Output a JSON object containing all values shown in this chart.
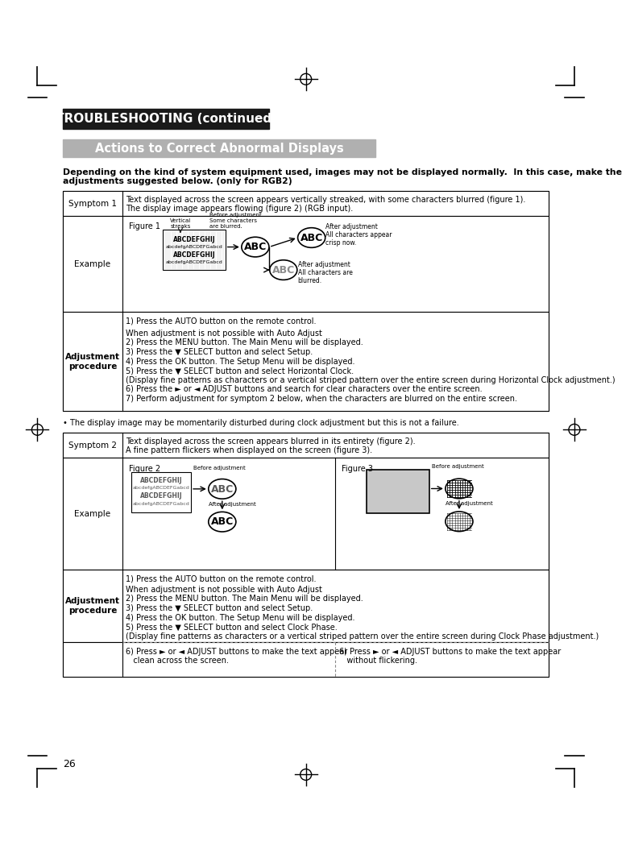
{
  "page_bg": "#ffffff",
  "title_bg": "#1a1a1a",
  "title_text": "TROUBLESHOOTING (continued)",
  "title_text_color": "#ffffff",
  "subtitle_bg": "#b0b0b0",
  "subtitle_text": "Actions to Correct Abnormal Displays",
  "subtitle_text_color": "#ffffff",
  "intro_bold": "Depending on the kind of system equipment used, images may not be displayed normally.  In this case, make the\nadjustments suggested below. (only for RGB2)",
  "symptom1_label": "Symptom 1",
  "symptom1_text": "Text displayed across the screen appears vertically streaked, with some characters blurred (figure 1).\nThe display image appears flowing (figure 2) (RGB input).",
  "example_label": "Example",
  "figure1_label": "Figure 1",
  "adjustment_label": "Adjustment\nprocedure",
  "adj1_step1": "1) Press the AUTO button on the remote control.",
  "adj1_steps": "When adjustment is not possible with Auto Adjust\n2) Press the MENU button. The Main Menu will be displayed.\n3) Press the ▼ SELECT button and select Setup.\n4) Press the OK button. The Setup Menu will be displayed.\n5) Press the ▼ SELECT button and select Horizontal Clock.\n(Display fine patterns as characters or a vertical striped pattern over the entire screen during Horizontal Clock adjustment.)\n6) Press the ► or ◄ ADJUST buttons and search for clear characters over the entire screen.\n7) Perform adjustment for symptom 2 below, when the characters are blurred on the entire screen.",
  "bullet_note1": "• The display image may be momentarily disturbed during clock adjustment but this is not a failure.",
  "symptom2_label": "Symptom 2",
  "symptom2_text": "Text displayed across the screen appears blurred in its entirety (figure 2).\nA fine pattern flickers when displayed on the screen (figure 3).",
  "figure2_label": "Figure 2",
  "figure3_label": "Figure 3",
  "adj2_step1": "1) Press the AUTO button on the remote control.",
  "adj2_steps": "When adjustment is not possible with Auto Adjust\n2) Press the MENU button. The Main Menu will be displayed.\n3) Press the ▼ SELECT button and select Setup.\n4) Press the OK button. The Setup Menu will be displayed.\n5) Press the ▼ SELECT button and select Clock Phase.\n(Display fine patterns as characters or a vertical striped pattern over the entire screen during Clock Phase adjustment.)",
  "adj2_col1": "6) Press ► or ◄ ADJUST buttons to make the text appear\n   clean across the screen.",
  "adj2_col2": "6) Press ► or ◄ ADJUST buttons to make the text appear\n   without flickering.",
  "page_number": "26",
  "table_border": "#000000",
  "dashed_border": "#888888"
}
